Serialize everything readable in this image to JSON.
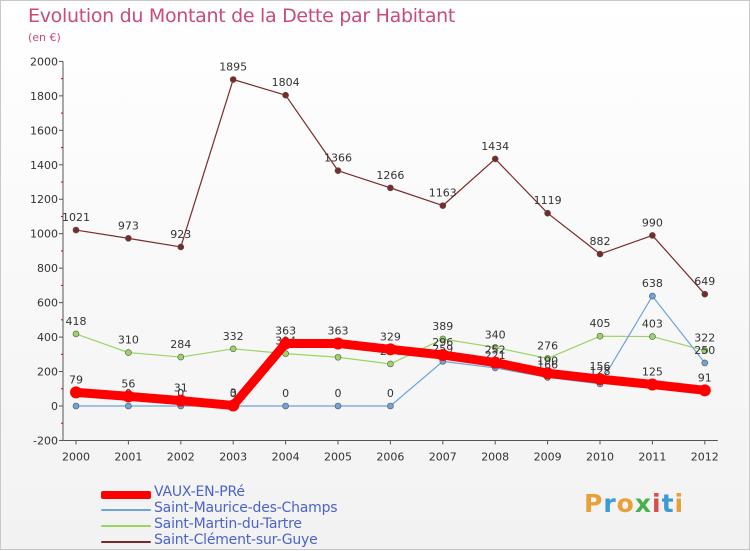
{
  "title": "Evolution du Montant de la Dette par Habitant",
  "subtitle": "(en €)",
  "brand": {
    "text": "Proxiti",
    "colors": [
      "#e8a13a",
      "#3b9bd6",
      "#e8a13a",
      "#4bb04f",
      "#d94c4c",
      "#3b9bd6",
      "#e8a13a"
    ]
  },
  "chart_data": {
    "type": "line",
    "x": [
      "2000",
      "2001",
      "2002",
      "2003",
      "2004",
      "2005",
      "2006",
      "2007",
      "2008",
      "2009",
      "2010",
      "2011",
      "2012"
    ],
    "ylim": [
      -200,
      2000
    ],
    "yticks": [
      "-200",
      "0",
      "200",
      "400",
      "600",
      "800",
      "1000",
      "1200",
      "1400",
      "1600",
      "1800",
      "2000"
    ],
    "grid": false,
    "legend_position": "bottom-left",
    "series": [
      {
        "name": "VAUX-EN-PRé",
        "color": "#ff0000",
        "values": [
          79,
          56,
          31,
          3,
          363,
          363,
          329,
          296,
          252,
          190,
          156,
          125,
          91
        ],
        "labels": [
          "79",
          "56",
          "31",
          "3",
          "363",
          "363",
          "329",
          "296",
          "252",
          "190",
          "156",
          "125",
          "91"
        ]
      },
      {
        "name": "Saint-Maurice-des-Champs",
        "color": "#6fa3d9",
        "values": [
          0,
          0,
          0,
          0,
          0,
          0,
          0,
          259,
          221,
          166,
          128,
          638,
          250
        ],
        "labels": [
          "0",
          "0",
          "0",
          "0",
          "0",
          "0",
          "0",
          "259",
          "221",
          "166",
          "128",
          "638",
          "250"
        ]
      },
      {
        "name": "Saint-Martin-du-Tartre",
        "color": "#9bd464",
        "values": [
          418,
          310,
          284,
          332,
          304,
          283,
          244,
          389,
          340,
          276,
          405,
          403,
          322
        ],
        "labels": [
          "418",
          "310",
          "284",
          "332",
          "304",
          "283",
          "244",
          "389",
          "340",
          "276",
          "405",
          "403",
          "322"
        ]
      },
      {
        "name": "Saint-Clément-sur-Guye",
        "color": "#7b2a2a",
        "values": [
          1021,
          973,
          923,
          1895,
          1804,
          1366,
          1266,
          1163,
          1434,
          1119,
          882,
          990,
          649
        ],
        "labels": [
          "1021",
          "973",
          "923",
          "1895",
          "1804",
          "1366",
          "1266",
          "1163",
          "1434",
          "1119",
          "882",
          "990",
          "649"
        ]
      }
    ]
  }
}
